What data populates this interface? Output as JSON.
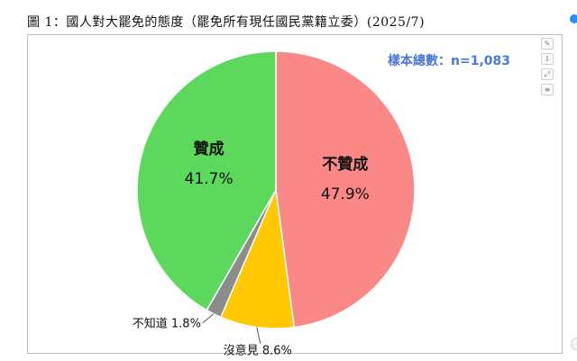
{
  "title": "圖 1：國人對大罷免的態度（罷免所有現任國民黨籍立委）(2025/7)",
  "sample_label": "樣本總數：n=1,083",
  "colors": {
    "disagree": "#fa8886",
    "no_opinion": "#ffc800",
    "dont_know": "#8c8c8c",
    "agree": "#5cd85c",
    "sample_text": "#4a78d6"
  },
  "toolbar": [
    "edit-icon",
    "download-icon",
    "expand-icon",
    "menu-icon"
  ],
  "chart_data": {
    "type": "pie",
    "title": "圖 1：國人對大罷免的態度（罷免所有現任國民黨籍立委）(2025/7)",
    "start_angle_deg": 0,
    "direction": "clockwise",
    "slices": [
      {
        "name": "不贊成",
        "value": 47.9,
        "pct_label": "47.9%",
        "color": "#fa8886"
      },
      {
        "name": "沒意見",
        "value": 8.6,
        "pct_label": "8.6%",
        "color": "#ffc800"
      },
      {
        "name": "不知道",
        "value": 1.8,
        "pct_label": "1.8%",
        "color": "#8c8c8c"
      },
      {
        "name": "贊成",
        "value": 41.7,
        "pct_label": "41.7%",
        "color": "#5cd85c"
      }
    ],
    "annotation": "樣本總數：n=1,083"
  }
}
